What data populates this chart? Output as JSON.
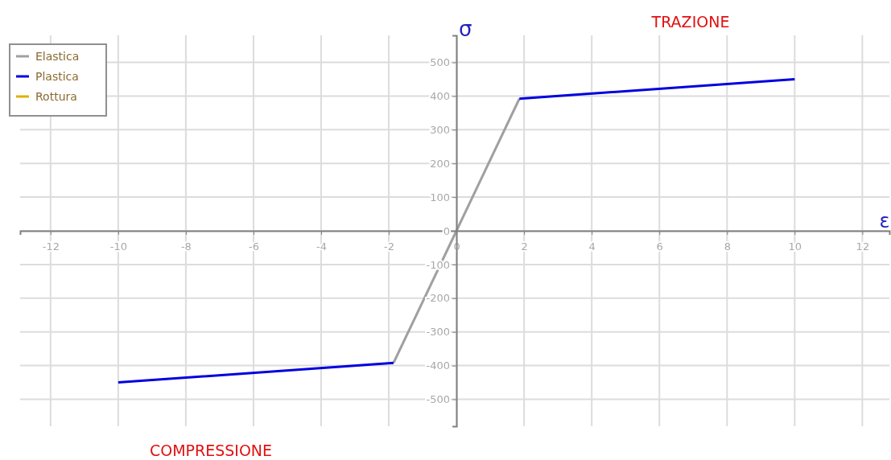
{
  "chart_data": {
    "type": "line",
    "xlabel": "ε",
    "ylabel": "σ",
    "xlim": [
      -12.9,
      12.8
    ],
    "ylim": [
      -580,
      580
    ],
    "xticks": [
      -12,
      -10,
      -8,
      -6,
      -4,
      -2,
      0,
      2,
      4,
      6,
      8,
      10,
      12
    ],
    "yticks": [
      -500,
      -400,
      -300,
      -200,
      -100,
      0,
      100,
      200,
      300,
      400,
      500
    ],
    "grid": true,
    "legend": "top left",
    "marker": "none",
    "line_style": "solid",
    "annotations": [
      "TRAZIONE",
      "COMPRESSIONE"
    ],
    "series": [
      {
        "name": "Elastica",
        "color": "#a0a0a0",
        "x": [
          -1.86,
          0,
          1.86
        ],
        "values": [
          -392,
          0,
          392
        ]
      },
      {
        "name": "Plastica",
        "color": "#0000e0",
        "x": [
          -10,
          -1.86,
          0,
          1.86,
          10
        ],
        "values": [
          -450,
          -392,
          null,
          392,
          450
        ]
      },
      {
        "name": "Rottura",
        "color": "#e0b000"
      }
    ]
  }
}
